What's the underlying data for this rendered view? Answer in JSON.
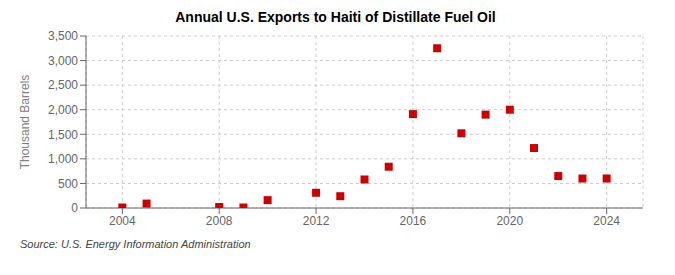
{
  "chart_data": {
    "type": "scatter",
    "title": "Annual U.S. Exports to Haiti of Distillate Fuel Oil",
    "ylabel": "Thousand Barrels",
    "source": "Source: U.S. Energy Information Administration",
    "x": [
      2004,
      2005,
      2008,
      2009,
      2010,
      2012,
      2013,
      2014,
      2015,
      2016,
      2017,
      2018,
      2019,
      2020,
      2021,
      2022,
      2023,
      2024
    ],
    "values": [
      10,
      90,
      20,
      10,
      160,
      310,
      240,
      580,
      840,
      1910,
      3250,
      1520,
      1900,
      2000,
      1220,
      650,
      600,
      600
    ],
    "color": "#cc0000",
    "marker": "square",
    "xlim": [
      2002.5,
      2025.5
    ],
    "ylim": [
      0,
      3500
    ],
    "xticks": [
      2004,
      2008,
      2012,
      2016,
      2020,
      2024
    ],
    "yticks": [
      0,
      500,
      {
        "value": 1000,
        "label": "1,000"
      },
      {
        "value": 1500,
        "label": "1,500"
      },
      {
        "value": 2000,
        "label": "2,000"
      },
      {
        "value": 2500,
        "label": "2,500"
      },
      {
        "value": 3000,
        "label": "3,000"
      },
      {
        "value": 3500,
        "label": "3,500"
      }
    ],
    "grid": true
  }
}
